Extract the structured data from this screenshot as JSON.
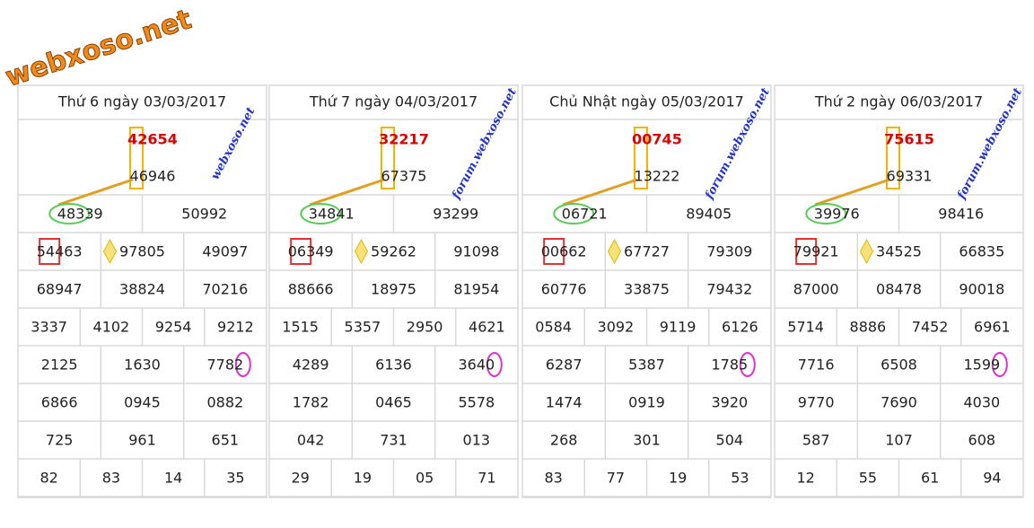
{
  "logo": "webxoso.net",
  "days": [
    {
      "title": "Thứ 6 ngày 03/03/2017",
      "special": "42654",
      "first": "46946",
      "watermark": "webxoso.net",
      "rows": [
        [
          "48339",
          "50992"
        ],
        [
          "54463",
          "97805",
          "49097"
        ],
        [
          "68947",
          "38824",
          "70216"
        ],
        [
          "3337",
          "4102",
          "9254",
          "9212"
        ],
        [
          "2125",
          "1630",
          "7782"
        ],
        [
          "6866",
          "0945",
          "0882"
        ],
        [
          "725",
          "961",
          "651"
        ],
        [
          "82",
          "83",
          "14",
          "35"
        ]
      ]
    },
    {
      "title": "Thứ 7 ngày 04/03/2017",
      "special": "32217",
      "first": "67375",
      "watermark": "forum.webxoso.net",
      "rows": [
        [
          "34841",
          "93299"
        ],
        [
          "06349",
          "59262",
          "91098"
        ],
        [
          "88666",
          "18975",
          "81954"
        ],
        [
          "1515",
          "5357",
          "2950",
          "4621"
        ],
        [
          "4289",
          "6136",
          "3640"
        ],
        [
          "1782",
          "0465",
          "5578"
        ],
        [
          "042",
          "731",
          "013"
        ],
        [
          "29",
          "19",
          "05",
          "71"
        ]
      ]
    },
    {
      "title": "Chủ Nhật ngày 05/03/2017",
      "special": "00745",
      "first": "13222",
      "watermark": "forum.webxoso.net",
      "rows": [
        [
          "06721",
          "89405"
        ],
        [
          "00662",
          "67727",
          "79309"
        ],
        [
          "60776",
          "33875",
          "79432"
        ],
        [
          "0584",
          "3092",
          "9119",
          "6126"
        ],
        [
          "6287",
          "5387",
          "1785"
        ],
        [
          "1474",
          "0919",
          "3920"
        ],
        [
          "268",
          "301",
          "504"
        ],
        [
          "83",
          "77",
          "19",
          "53"
        ]
      ]
    },
    {
      "title": "Thứ 2 ngày 06/03/2017",
      "special": "75615",
      "first": "69331",
      "watermark": "forum.webxoso.net",
      "rows": [
        [
          "39976",
          "98416"
        ],
        [
          "79921",
          "34525",
          "66835"
        ],
        [
          "87000",
          "08478",
          "90018"
        ],
        [
          "5714",
          "8886",
          "7452",
          "6961"
        ],
        [
          "7716",
          "6508",
          "1599"
        ],
        [
          "9770",
          "7690",
          "4030"
        ],
        [
          "587",
          "107",
          "608"
        ],
        [
          "12",
          "55",
          "61",
          "94"
        ]
      ]
    }
  ]
}
